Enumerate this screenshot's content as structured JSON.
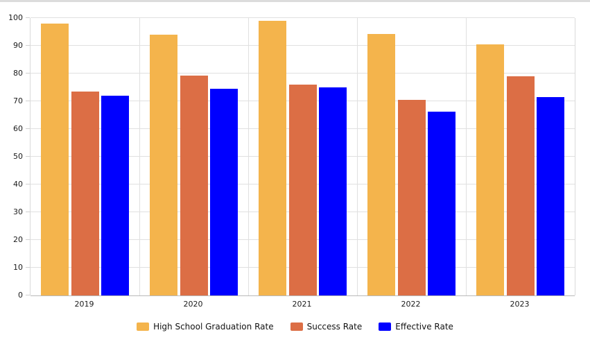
{
  "chart_data": {
    "type": "bar",
    "categories": [
      "2019",
      "2020",
      "2021",
      "2022",
      "2023"
    ],
    "series": [
      {
        "name": "High School Graduation Rate",
        "color": "#f4b44c",
        "values": [
          98,
          94,
          99,
          94.3,
          90.5
        ]
      },
      {
        "name": "Success Rate",
        "color": "#dc6e45",
        "values": [
          73.5,
          79.3,
          76,
          70.5,
          79
        ]
      },
      {
        "name": "Effective Rate",
        "color": "#0000ff",
        "values": [
          72,
          74.5,
          75,
          66.3,
          71.5
        ]
      }
    ],
    "title": "",
    "xlabel": "",
    "ylabel": "",
    "ylim": [
      0,
      100
    ],
    "ytick_step": 10,
    "ytick_labels": [
      "0",
      "10",
      "20",
      "30",
      "40",
      "50",
      "60",
      "70",
      "80",
      "90",
      "100"
    ],
    "grid": true,
    "vertical_category_separators": true,
    "legend_position": "bottom"
  },
  "colors": {
    "background": "#ffffff",
    "top_strip": "#dcdcdc",
    "gridline": "#e0e0e0",
    "axis_line": "#b8b8b8",
    "tick": "#d0d0d0",
    "text": "#1a1a1a"
  }
}
